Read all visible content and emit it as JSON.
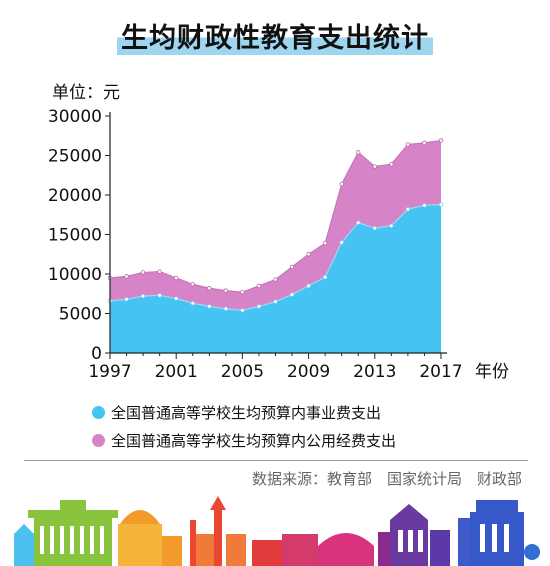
{
  "title": "生均财政性教育支出统计",
  "unit_label": "单位：元",
  "legend": [
    {
      "label": "全国普通高等学校生均预算内事业费支出",
      "color": "#45c3f3"
    },
    {
      "label": "全国普通高等学校生均预算内公用经费支出",
      "color": "#d684c7"
    }
  ],
  "source": "数据来源：教育部　国家统计局　财政部",
  "chart_data": {
    "type": "area",
    "stacked": true,
    "x": [
      1997,
      1998,
      1999,
      2000,
      2001,
      2002,
      2003,
      2004,
      2005,
      2006,
      2007,
      2008,
      2009,
      2010,
      2011,
      2012,
      2013,
      2014,
      2015,
      2016,
      2017
    ],
    "series": [
      {
        "name": "全国普通高等学校生均预算内事业费支出",
        "color": "#45c3f3",
        "values": [
          6600,
          6800,
          7200,
          7300,
          6900,
          6300,
          5900,
          5600,
          5400,
          5900,
          6500,
          7400,
          8500,
          9600,
          14000,
          16500,
          15800,
          16100,
          18200,
          18700,
          18800
        ]
      },
      {
        "name": "全国普通高等学校生均预算内公用经费支出",
        "color": "#d684c7",
        "values": [
          2900,
          2900,
          3000,
          3000,
          2600,
          2400,
          2300,
          2300,
          2300,
          2600,
          2800,
          3500,
          4000,
          4300,
          7400,
          8900,
          7800,
          7800,
          8200,
          7900,
          8100
        ]
      }
    ],
    "xlabel": "年份",
    "ylabel": "单位：元",
    "ylim": [
      0,
      30000
    ],
    "yticks": [
      0,
      5000,
      10000,
      15000,
      20000,
      25000,
      30000
    ],
    "xticks": [
      1997,
      2001,
      2005,
      2009,
      2013,
      2017
    ],
    "grid": false
  }
}
